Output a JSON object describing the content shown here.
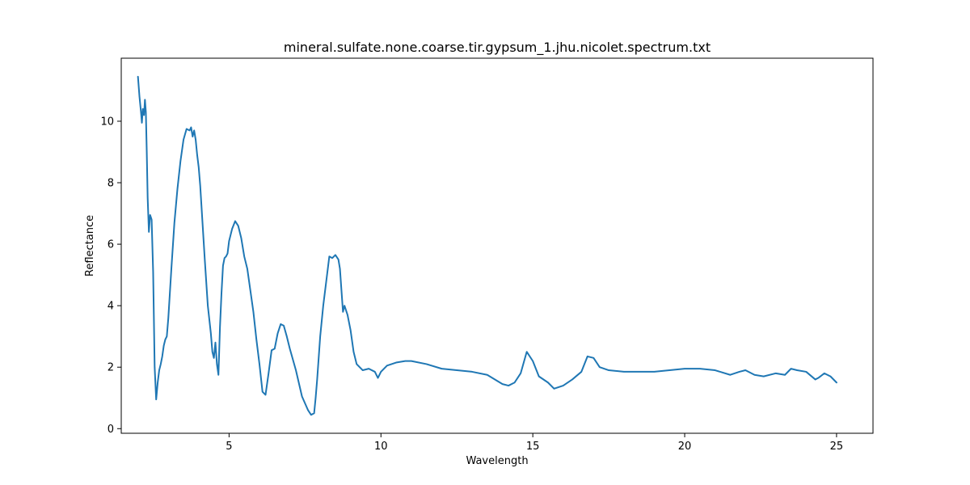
{
  "chart_data": {
    "type": "line",
    "title": "mineral.sulfate.none.coarse.tir.gypsum_1.jhu.nicolet.spectrum.txt",
    "xlabel": "Wavelength",
    "ylabel": "Reflectance",
    "xlim": [
      1.45,
      26.2
    ],
    "ylim": [
      -0.15,
      12.05
    ],
    "xticks": [
      5,
      10,
      15,
      20,
      25
    ],
    "yticks": [
      0,
      2,
      4,
      6,
      8,
      10
    ],
    "grid": false,
    "legend": "none",
    "line_color": "#1f77b4",
    "series": [
      {
        "name": "",
        "x": [
          2.0,
          2.05,
          2.1,
          2.13,
          2.16,
          2.2,
          2.23,
          2.26,
          2.29,
          2.32,
          2.36,
          2.4,
          2.45,
          2.5,
          2.55,
          2.6,
          2.65,
          2.7,
          2.75,
          2.8,
          2.85,
          2.9,
          2.95,
          3.0,
          3.05,
          3.1,
          3.2,
          3.3,
          3.4,
          3.5,
          3.6,
          3.7,
          3.75,
          3.8,
          3.85,
          3.9,
          3.95,
          4.0,
          4.05,
          4.1,
          4.2,
          4.3,
          4.4,
          4.45,
          4.5,
          4.55,
          4.6,
          4.65,
          4.7,
          4.75,
          4.8,
          4.85,
          4.9,
          4.95,
          5.0,
          5.05,
          5.1,
          5.2,
          5.3,
          5.4,
          5.5,
          5.6,
          5.7,
          5.8,
          5.9,
          6.0,
          6.1,
          6.2,
          6.3,
          6.4,
          6.5,
          6.6,
          6.7,
          6.8,
          6.9,
          7.0,
          7.2,
          7.4,
          7.6,
          7.7,
          7.8,
          7.85,
          7.9,
          8.0,
          8.1,
          8.2,
          8.3,
          8.4,
          8.5,
          8.6,
          8.65,
          8.7,
          8.75,
          8.8,
          8.9,
          9.0,
          9.1,
          9.2,
          9.4,
          9.6,
          9.8,
          9.9,
          10.0,
          10.2,
          10.5,
          10.8,
          11.0,
          11.5,
          12.0,
          12.5,
          13.0,
          13.5,
          14.0,
          14.2,
          14.4,
          14.6,
          14.8,
          15.0,
          15.2,
          15.5,
          15.7,
          16.0,
          16.3,
          16.6,
          16.8,
          17.0,
          17.2,
          17.5,
          18.0,
          18.5,
          19.0,
          19.5,
          20.0,
          20.5,
          21.0,
          21.5,
          21.8,
          22.0,
          22.3,
          22.6,
          23.0,
          23.3,
          23.5,
          23.7,
          24.0,
          24.3,
          24.4,
          24.6,
          24.8,
          25.0
        ],
        "y": [
          11.45,
          10.8,
          10.3,
          9.95,
          10.4,
          10.2,
          10.7,
          10.3,
          9.0,
          7.5,
          6.4,
          6.95,
          6.8,
          5.1,
          2.0,
          0.95,
          1.5,
          1.9,
          2.1,
          2.35,
          2.7,
          2.9,
          3.0,
          3.6,
          4.4,
          5.2,
          6.7,
          7.8,
          8.7,
          9.4,
          9.75,
          9.7,
          9.8,
          9.5,
          9.7,
          9.4,
          8.9,
          8.5,
          7.9,
          7.1,
          5.5,
          4.0,
          3.1,
          2.5,
          2.3,
          2.8,
          2.1,
          1.75,
          3.3,
          4.4,
          5.3,
          5.55,
          5.6,
          5.7,
          6.1,
          6.3,
          6.5,
          6.75,
          6.6,
          6.2,
          5.6,
          5.2,
          4.5,
          3.8,
          2.9,
          2.1,
          1.2,
          1.1,
          1.8,
          2.55,
          2.6,
          3.1,
          3.4,
          3.35,
          3.0,
          2.6,
          1.9,
          1.05,
          0.6,
          0.45,
          0.5,
          1.0,
          1.6,
          3.0,
          4.0,
          4.8,
          5.6,
          5.55,
          5.65,
          5.5,
          5.2,
          4.5,
          3.8,
          4.0,
          3.7,
          3.2,
          2.5,
          2.1,
          1.9,
          1.95,
          1.85,
          1.65,
          1.85,
          2.05,
          2.15,
          2.2,
          2.2,
          2.1,
          1.95,
          1.9,
          1.85,
          1.75,
          1.45,
          1.4,
          1.5,
          1.8,
          2.5,
          2.2,
          1.7,
          1.5,
          1.3,
          1.4,
          1.6,
          1.85,
          2.35,
          2.3,
          2.0,
          1.9,
          1.85,
          1.85,
          1.85,
          1.9,
          1.95,
          1.95,
          1.9,
          1.75,
          1.85,
          1.9,
          1.75,
          1.7,
          1.8,
          1.75,
          1.95,
          1.9,
          1.85,
          1.6,
          1.65,
          1.8,
          1.7,
          1.5
        ]
      }
    ]
  }
}
